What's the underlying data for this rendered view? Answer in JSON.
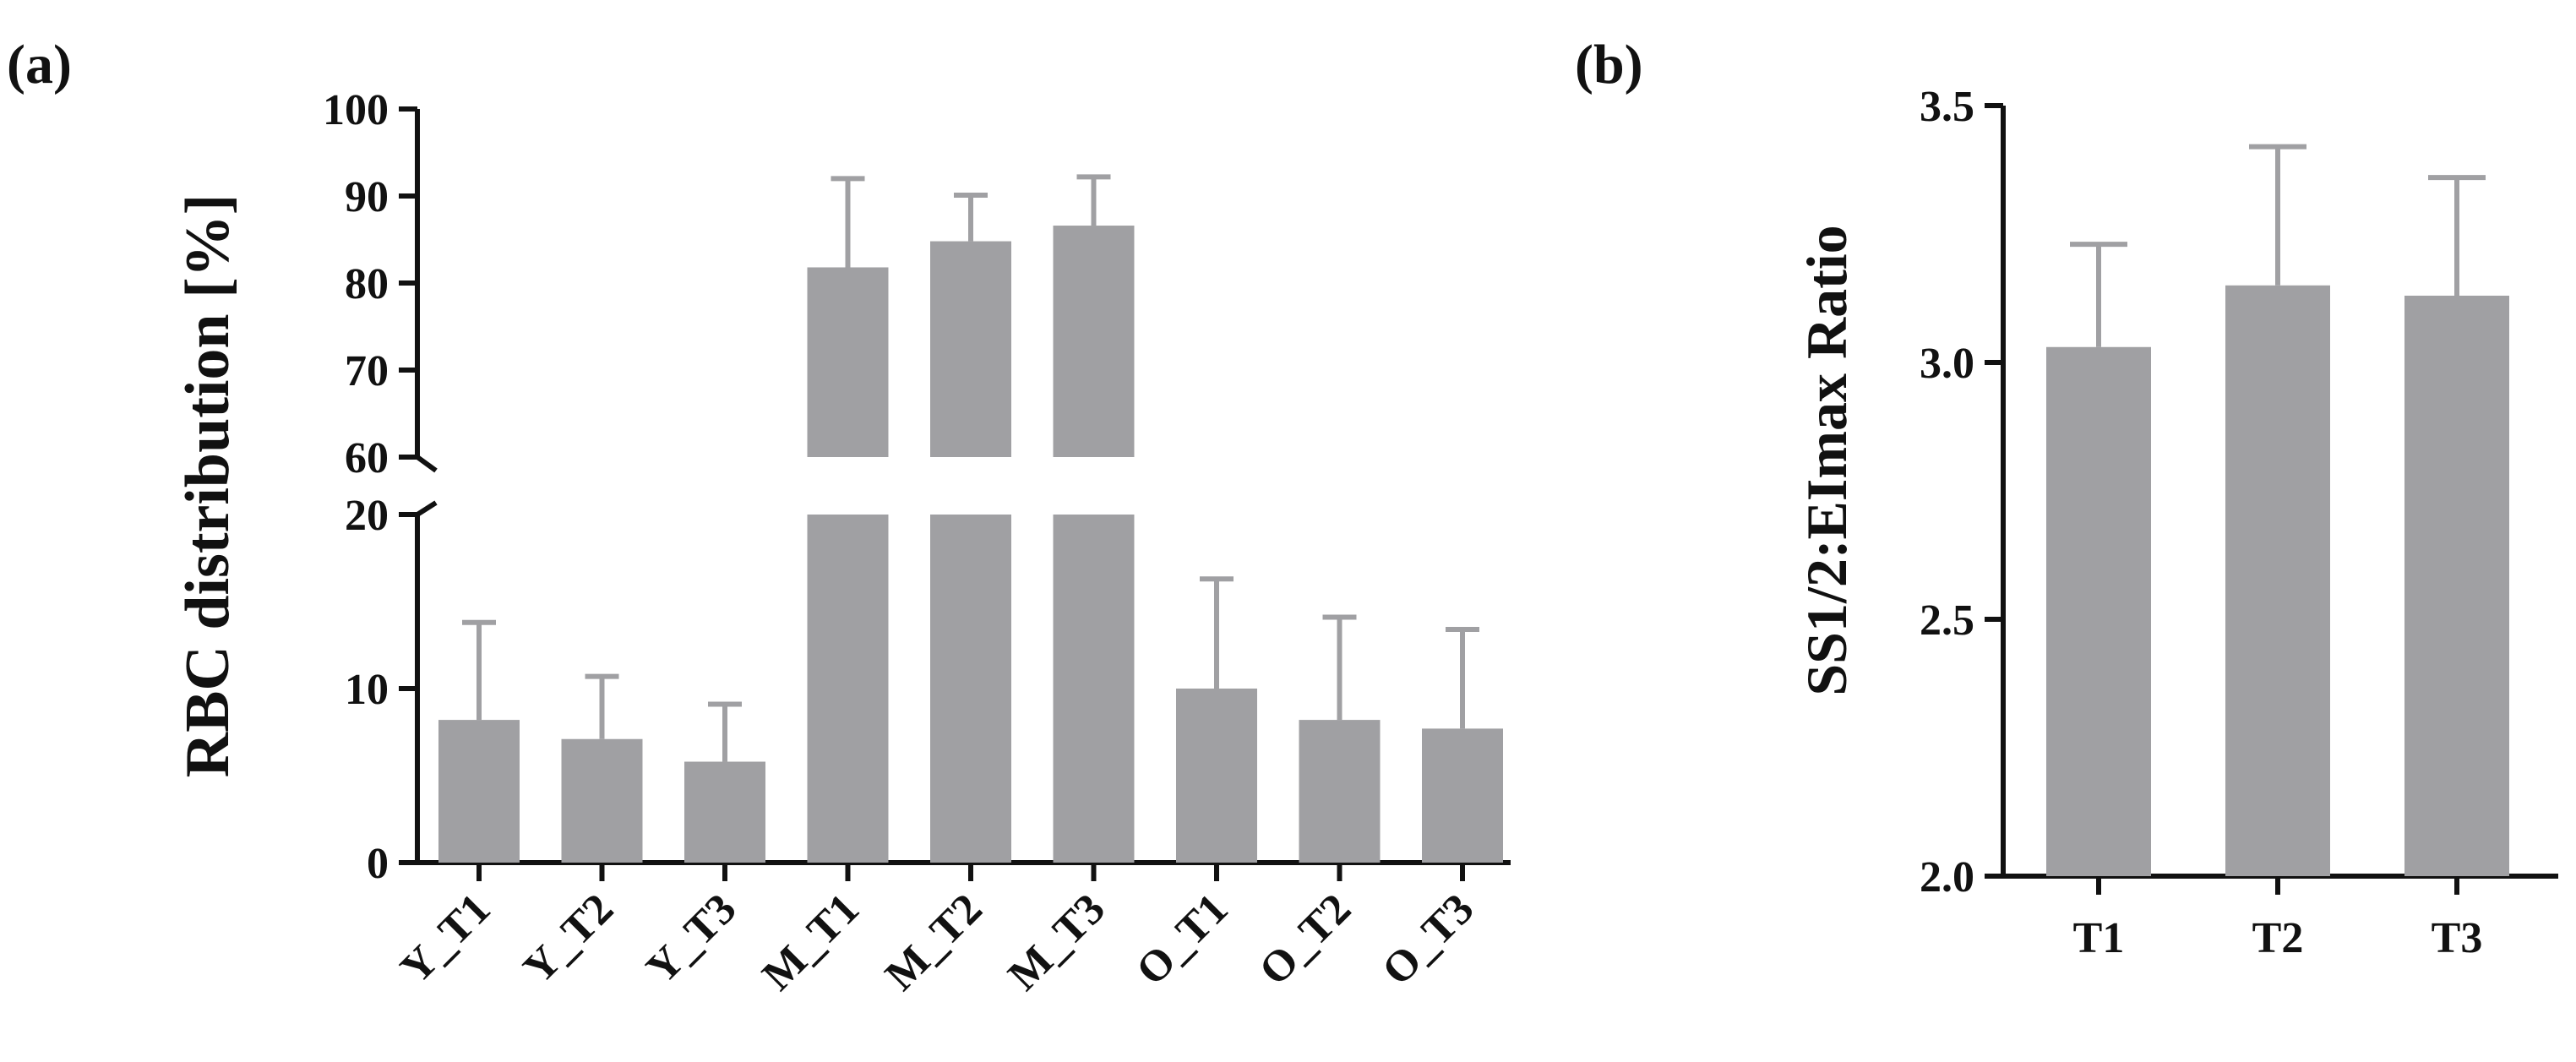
{
  "chart_data": [
    {
      "panel": "(a)",
      "type": "bar",
      "ylabel": "RBC distribution [%]",
      "xlabel": "",
      "axis_break": {
        "lower_range": [
          0,
          20
        ],
        "upper_range": [
          60,
          100
        ]
      },
      "lower_ticks": [
        0,
        10,
        20
      ],
      "upper_ticks": [
        60,
        70,
        80,
        90,
        100
      ],
      "categories": [
        "Y_T1",
        "Y_T2",
        "Y_T3",
        "M_T1",
        "M_T2",
        "M_T3",
        "O_T1",
        "O_T2",
        "O_T3"
      ],
      "values": [
        8.2,
        7.1,
        5.8,
        81.8,
        84.8,
        86.6,
        10.0,
        8.2,
        7.7
      ],
      "error": [
        5.6,
        3.6,
        3.3,
        10.2,
        5.3,
        5.6,
        6.3,
        5.9,
        5.7
      ],
      "bar_color": "#a0a0a3",
      "error_color": "#a0a0a3"
    },
    {
      "panel": "(b)",
      "type": "bar",
      "ylabel": "SS1/2:EImax Ratio",
      "xlabel": "",
      "ylim": [
        2.0,
        3.5
      ],
      "yticks": [
        "2.0",
        "2.5",
        "3.0",
        "3.5"
      ],
      "categories": [
        "T1",
        "T2",
        "T3"
      ],
      "values": [
        3.03,
        3.15,
        3.13
      ],
      "error": [
        0.2,
        0.27,
        0.23
      ],
      "bar_color": "#a0a0a3",
      "error_color": "#a0a0a3"
    }
  ]
}
